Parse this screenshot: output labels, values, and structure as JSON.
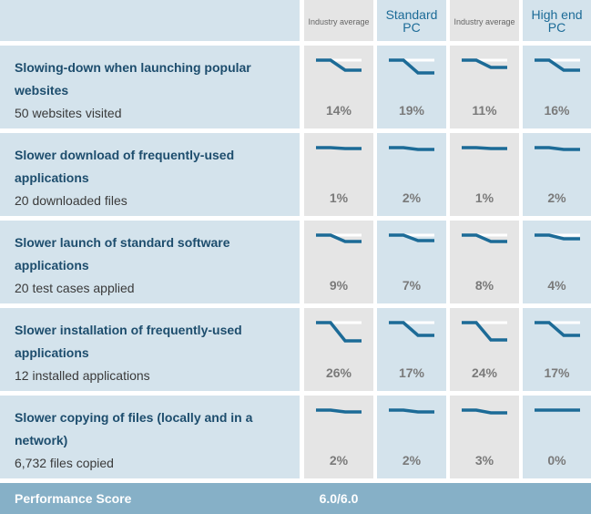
{
  "header": {
    "columns": [
      {
        "label": "Industry average",
        "kind": "industry"
      },
      {
        "label": "Standard PC",
        "kind": "pc"
      },
      {
        "label": "Industry average",
        "kind": "industry"
      },
      {
        "label": "High end PC",
        "kind": "pc"
      }
    ]
  },
  "rows": [
    {
      "title": "Slowing-down when launching popular websites",
      "subtitle": "50 websites visited",
      "values": [
        "14%",
        "19%",
        "11%",
        "16%"
      ]
    },
    {
      "title": "Slower download of frequently-used applications",
      "subtitle": "20 downloaded files",
      "values": [
        "1%",
        "2%",
        "1%",
        "2%"
      ]
    },
    {
      "title": "Slower launch of standard software applications",
      "subtitle": "20 test cases applied",
      "values": [
        "9%",
        "7%",
        "8%",
        "4%"
      ]
    },
    {
      "title": "Slower installation of frequently-used applications",
      "subtitle": "12 installed applications",
      "values": [
        "26%",
        "17%",
        "24%",
        "17%"
      ]
    },
    {
      "title": "Slower copying of files (locally and in a network)",
      "subtitle": "6,732 files copied",
      "values": [
        "2%",
        "2%",
        "3%",
        "0%"
      ]
    }
  ],
  "footer": {
    "label": "Performance Score",
    "score": "6.0/6.0"
  },
  "colors": {
    "accent": "#1c6b97",
    "label_bg": "#d4e3ec",
    "industry_bg": "#e5e5e5",
    "footer_bg": "#86b0c7"
  },
  "icons": {
    "sparkline": "slowdown-sparkline-icon"
  }
}
